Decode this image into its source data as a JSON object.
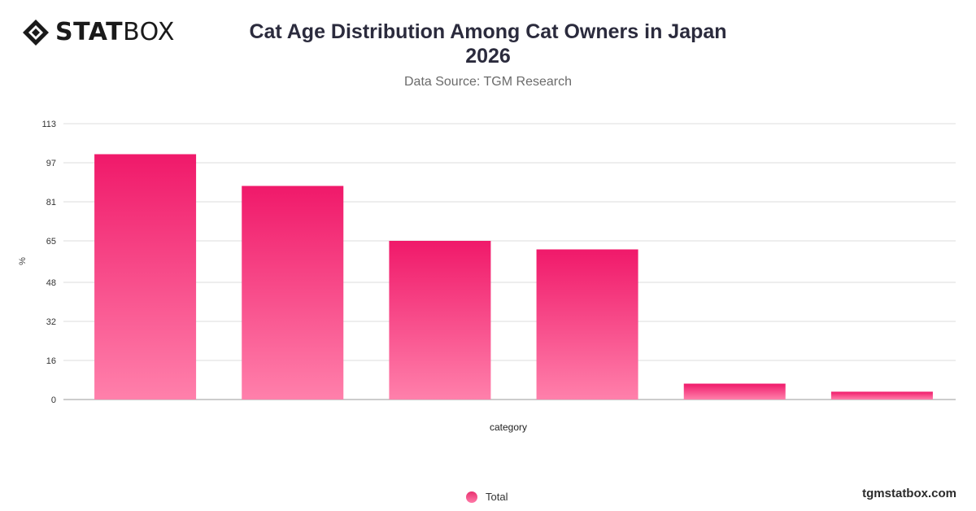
{
  "brand": {
    "logo_bold": "STAT",
    "logo_regular": "BOX",
    "site": "tgmstatbox.com"
  },
  "chart_data": {
    "type": "bar",
    "title": "Cat Age Distribution Among Cat Owners in Japan",
    "title_line2": "2026",
    "subtitle": "Data Source: TGM Research",
    "xlabel": "category",
    "ylabel": "%",
    "yticks": [
      0,
      16,
      32,
      48,
      65,
      81,
      97,
      113
    ],
    "ylim": [
      0,
      113
    ],
    "grid": true,
    "legend_position": "bottom-center",
    "colors": {
      "bar_top": "#f0196a",
      "bar_bottom": "#ff80ab",
      "grid": "#dddddd"
    },
    "categories": [
      "",
      "",
      "",
      "",
      "",
      ""
    ],
    "series": [
      {
        "name": "Total",
        "values": [
          100.5,
          87.5,
          65,
          61.5,
          6.5,
          3.2
        ]
      }
    ]
  }
}
